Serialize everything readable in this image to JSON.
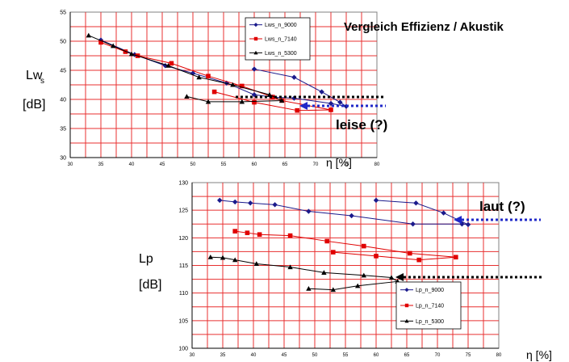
{
  "heading": "Vergleich Effizienz / Akustik",
  "annotations": {
    "leise": "leise (?)",
    "laut": "laut (?)"
  },
  "colors": {
    "grid": "#e83030",
    "frame": "#808080",
    "axis": "#000000",
    "dotted_black": "#000000",
    "dotted_blue": "#1f28c8"
  },
  "chart_data": [
    {
      "type": "line",
      "ylabel_main": "Lw",
      "ylabel_sub": "s",
      "yunit": "[dB]",
      "xlabel": "η [%]",
      "xlim": [
        30,
        80
      ],
      "ylim": [
        30,
        55
      ],
      "xticks": [
        30,
        35,
        40,
        45,
        50,
        55,
        60,
        65,
        70,
        75,
        80
      ],
      "yticks": [
        30,
        35,
        40,
        45,
        50,
        55
      ],
      "legend": "top-right",
      "series": [
        {
          "name": "Lws_n_9000",
          "color": "#1a1a8c",
          "marker": "diamond",
          "points": [
            [
              35,
              50.2
            ],
            [
              40.5,
              47.7
            ],
            [
              45.5,
              45.8
            ],
            [
              50,
              44.5
            ],
            [
              55.5,
              42.8
            ],
            [
              60,
              40.8
            ],
            [
              63,
              40.4
            ],
            [
              66.5,
              40.2
            ],
            [
              72.5,
              39.3
            ],
            [
              75,
              38.8
            ],
            [
              74,
              39.5
            ],
            [
              71,
              41.3
            ],
            [
              66.5,
              43.8
            ],
            [
              60,
              45.2
            ]
          ]
        },
        {
          "name": "Lws_n_7140",
          "color": "#e00000",
          "marker": "square",
          "points": [
            [
              35,
              49.8
            ],
            [
              39,
              48.2
            ],
            [
              41,
              47.5
            ],
            [
              46.5,
              46.2
            ],
            [
              52.5,
              44.0
            ],
            [
              58,
              42.3
            ],
            [
              63,
              40.4
            ],
            [
              64.5,
              39.8
            ],
            [
              72.5,
              38.2
            ],
            [
              67,
              38.1
            ],
            [
              60,
              39.5
            ],
            [
              53.5,
              41.3
            ]
          ]
        },
        {
          "name": "Lws_n_5300",
          "color": "#000000",
          "marker": "triangle",
          "points": [
            [
              33,
              51.0
            ],
            [
              37,
              49.2
            ],
            [
              40,
              47.8
            ],
            [
              46,
              45.8
            ],
            [
              51,
              43.8
            ],
            [
              56.5,
              42.5
            ],
            [
              62.5,
              40.8
            ],
            [
              64.5,
              39.8
            ],
            [
              58,
              39.6
            ],
            [
              52.5,
              39.6
            ],
            [
              49,
              40.5
            ]
          ]
        }
      ]
    },
    {
      "type": "line",
      "ylabel_main": "Lp",
      "ylabel_sub": "",
      "yunit": "[dB]",
      "xlabel": "η [%]",
      "xlim": [
        30,
        80
      ],
      "ylim": [
        100,
        130
      ],
      "xticks": [
        30,
        35,
        40,
        45,
        50,
        55,
        60,
        65,
        70,
        75,
        80
      ],
      "yticks": [
        100,
        105,
        110,
        115,
        120,
        125,
        130
      ],
      "legend": "bottom-right",
      "series": [
        {
          "name": "Lp_n_9000",
          "color": "#1a1a8c",
          "marker": "diamond",
          "points": [
            [
              34.5,
              126.8
            ],
            [
              37,
              126.5
            ],
            [
              39.5,
              126.3
            ],
            [
              43.5,
              126.0
            ],
            [
              49,
              124.8
            ],
            [
              56,
              124.0
            ],
            [
              66,
              122.5
            ],
            [
              74,
              122.5
            ],
            [
              75,
              122.4
            ],
            [
              71,
              124.5
            ],
            [
              66.5,
              126.3
            ],
            [
              60,
              126.8
            ]
          ]
        },
        {
          "name": "Lp_n_7140",
          "color": "#e00000",
          "marker": "square",
          "points": [
            [
              37,
              121.2
            ],
            [
              39,
              120.9
            ],
            [
              41,
              120.6
            ],
            [
              46,
              120.4
            ],
            [
              52,
              119.4
            ],
            [
              58,
              118.5
            ],
            [
              65.5,
              117.2
            ],
            [
              73,
              116.5
            ],
            [
              67,
              116.0
            ],
            [
              60,
              116.7
            ],
            [
              53,
              117.4
            ]
          ]
        },
        {
          "name": "Lp_n_5300",
          "color": "#000000",
          "marker": "triangle",
          "points": [
            [
              33,
              116.5
            ],
            [
              35,
              116.4
            ],
            [
              37,
              116.0
            ],
            [
              40.5,
              115.3
            ],
            [
              46,
              114.7
            ],
            [
              51.5,
              113.7
            ],
            [
              58,
              113.2
            ],
            [
              62.5,
              112.8
            ],
            [
              63.5,
              112.1
            ],
            [
              57,
              111.3
            ],
            [
              53,
              110.6
            ],
            [
              49,
              110.8
            ]
          ]
        }
      ]
    }
  ]
}
